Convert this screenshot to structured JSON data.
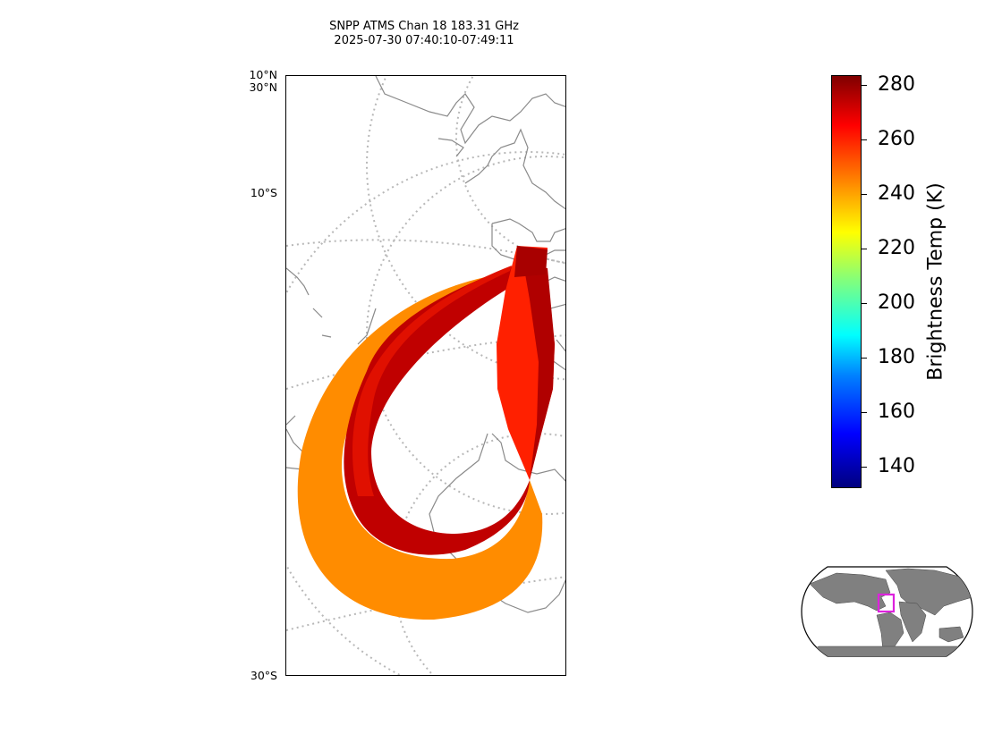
{
  "title": {
    "line1": "SNPP ATMS Chan 18 183.31 GHz",
    "line2": "2025-07-30 07:40:10-07:49:11"
  },
  "map": {
    "lat_labels": [
      "10°N",
      "30°N",
      "10°S",
      "30°S"
    ],
    "swath_colors": {
      "outer": "#ff8c00",
      "inner": "#cc0000",
      "core": "#ff2000",
      "dark": "#a00000"
    },
    "land_outline_color": "#808080",
    "graticule_color": "#b0b0b0"
  },
  "colorbar": {
    "label": "Brightness Temp (K)",
    "ticks": [
      "280",
      "260",
      "240",
      "220",
      "200",
      "180",
      "160",
      "140"
    ],
    "range": [
      131,
      284
    ],
    "colormap": "jet"
  },
  "inset": {
    "highlight_color": "#dd22dd",
    "land_color": "#808080"
  }
}
